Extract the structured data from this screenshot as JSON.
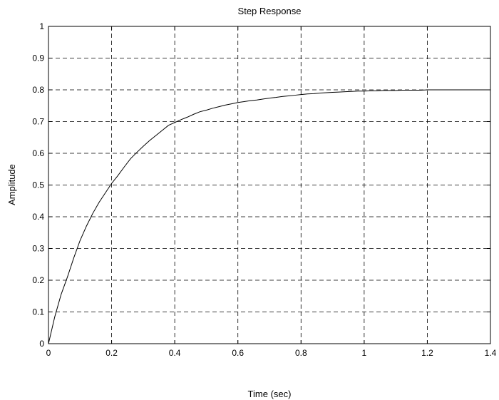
{
  "chart_data": {
    "type": "line",
    "title": "Step Response",
    "xlabel": "Time (sec)",
    "ylabel": "Amplitude",
    "xlim": [
      0,
      1.4
    ],
    "ylim": [
      0,
      1
    ],
    "grid": true,
    "x_ticks": [
      0,
      0.2,
      0.4,
      0.6,
      0.8,
      1,
      1.2,
      1.4
    ],
    "x_tick_labels": [
      "0",
      "0.2",
      "0.4",
      "0.6",
      "0.8",
      "1",
      "1.2",
      "1.4"
    ],
    "y_ticks": [
      0,
      0.1,
      0.2,
      0.3,
      0.4,
      0.5,
      0.6,
      0.7,
      0.8,
      0.9,
      1
    ],
    "y_tick_labels": [
      "0",
      "0.1",
      "0.2",
      "0.3",
      "0.4",
      "0.5",
      "0.6",
      "0.7",
      "0.8",
      "0.9",
      "1"
    ],
    "series": [
      {
        "x": [
          0,
          0.02,
          0.04,
          0.06,
          0.08,
          0.1,
          0.12,
          0.14,
          0.16,
          0.18,
          0.2,
          0.22,
          0.24,
          0.26,
          0.28,
          0.3,
          0.32,
          0.34,
          0.36,
          0.38,
          0.4,
          0.42,
          0.44,
          0.46,
          0.48,
          0.5,
          0.52,
          0.54,
          0.56,
          0.58,
          0.6,
          0.62,
          0.64,
          0.66,
          0.68,
          0.7,
          0.72,
          0.74,
          0.76,
          0.78,
          0.8,
          0.82,
          0.84,
          0.86,
          0.88,
          0.9,
          0.92,
          0.94,
          0.96,
          0.98,
          1,
          1.02,
          1.04,
          1.06,
          1.08,
          1.1,
          1.12,
          1.14,
          1.16,
          1.18,
          1.2,
          1.22,
          1.24,
          1.26,
          1.28,
          1.3,
          1.32,
          1.34,
          1.36,
          1.38,
          1.4
        ],
        "values": [
          0,
          0.085,
          0.155,
          0.21,
          0.27,
          0.325,
          0.37,
          0.41,
          0.445,
          0.475,
          0.505,
          0.53,
          0.557,
          0.583,
          0.603,
          0.622,
          0.64,
          0.656,
          0.672,
          0.688,
          0.697,
          0.706,
          0.714,
          0.723,
          0.731,
          0.736,
          0.742,
          0.747,
          0.752,
          0.756,
          0.76,
          0.763,
          0.766,
          0.768,
          0.771,
          0.774,
          0.776,
          0.779,
          0.781,
          0.783,
          0.785,
          0.787,
          0.788,
          0.79,
          0.791,
          0.792,
          0.793,
          0.794,
          0.795,
          0.796,
          0.796,
          0.797,
          0.797,
          0.798,
          0.798,
          0.798,
          0.799,
          0.799,
          0.799,
          0.799,
          0.8,
          0.8,
          0.8,
          0.8,
          0.8,
          0.8,
          0.8,
          0.8,
          0.8,
          0.8,
          0.8
        ]
      }
    ]
  }
}
